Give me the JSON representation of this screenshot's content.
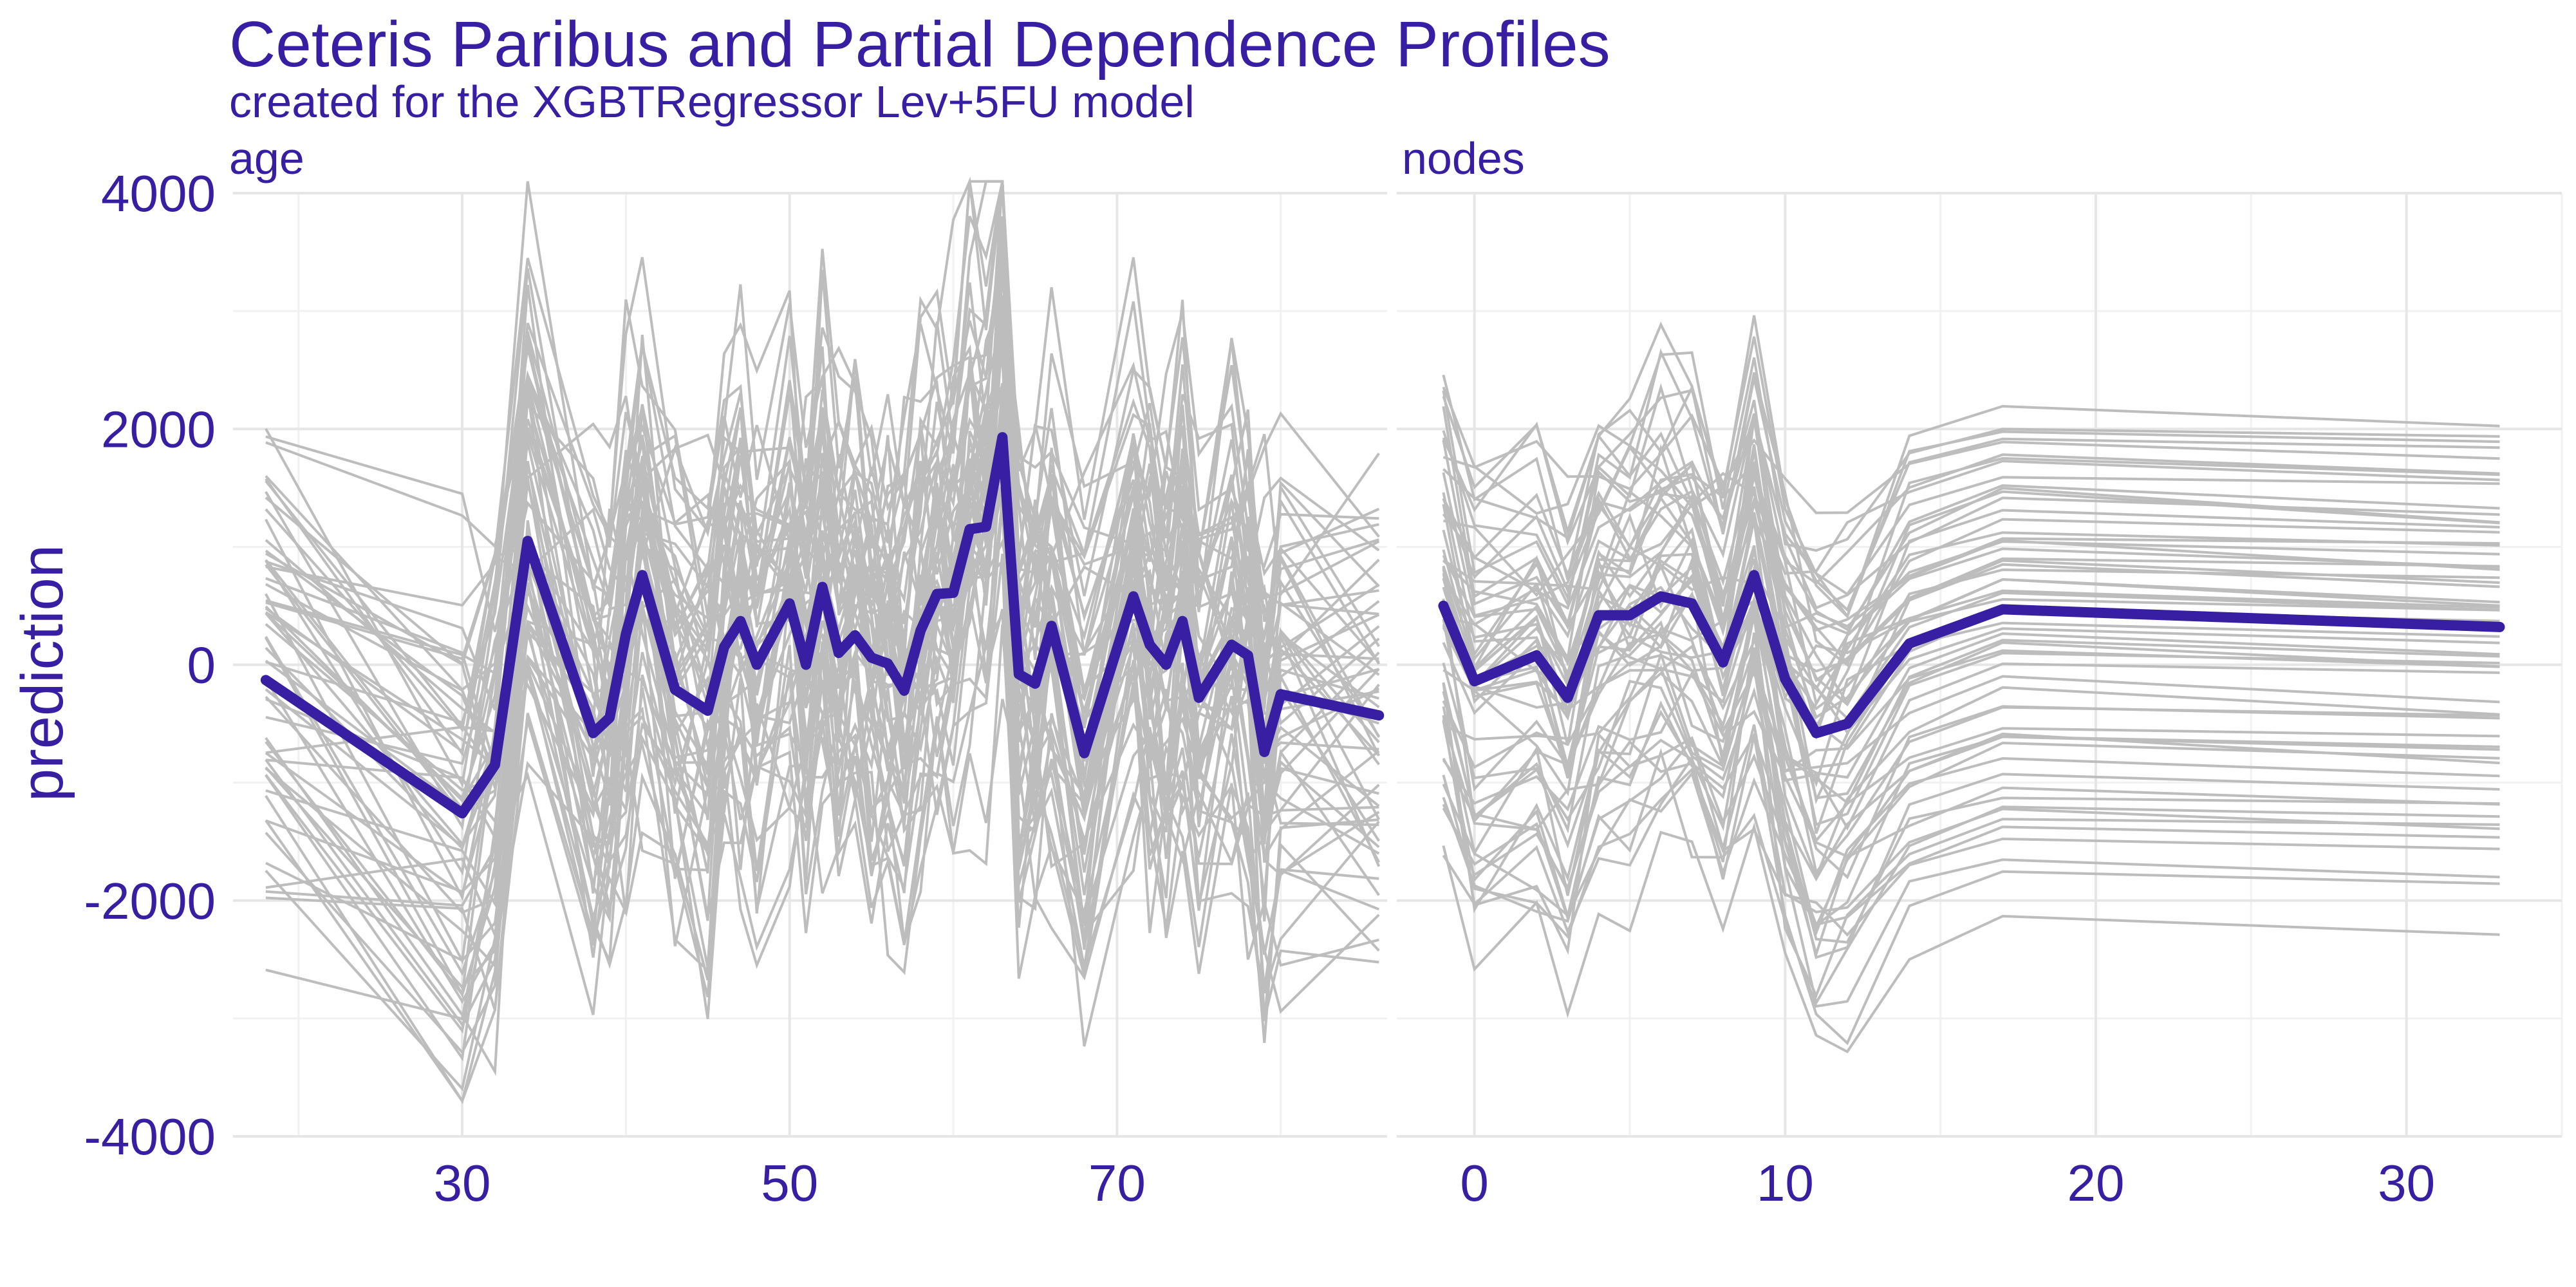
{
  "title": "Ceteris Paribus and Partial Dependence Profiles",
  "subtitle": "created for the XGBTRegressor Lev+5FU model",
  "ylabel": "prediction",
  "colors": {
    "text": "#371EA3",
    "pdp": "#371EA3",
    "cp": "#BDBDBD",
    "grid": "#E6E6E6",
    "minor_grid": "#F1F1F1"
  },
  "chart_data": [
    {
      "type": "line",
      "panel": "age",
      "xticks": [
        30,
        50,
        70
      ],
      "yticks": [
        4000,
        2000,
        0,
        -2000,
        -4000
      ],
      "xlim": [
        16,
        86.5
      ],
      "ylim": [
        -4000,
        4000
      ],
      "pdp": {
        "x": [
          18,
          30,
          32,
          34,
          38,
          39,
          40,
          41,
          43,
          45,
          46,
          47,
          48,
          50,
          51,
          52,
          53,
          54,
          55,
          56,
          57,
          58,
          59,
          60,
          61,
          62,
          63,
          64,
          65,
          66,
          68,
          71,
          72,
          73,
          74,
          75,
          77,
          78,
          79,
          80,
          86
        ],
        "y": [
          -130,
          -1260,
          -850,
          1050,
          -580,
          -450,
          260,
          760,
          -210,
          -390,
          150,
          370,
          0,
          520,
          0,
          660,
          100,
          250,
          60,
          10,
          -220,
          290,
          600,
          610,
          1150,
          1170,
          1930,
          -80,
          -160,
          330,
          -750,
          580,
          170,
          0,
          370,
          -280,
          170,
          80,
          -740,
          -250,
          -430
        ]
      },
      "cp_count": 60,
      "grid": true
    },
    {
      "type": "line",
      "panel": "nodes",
      "xticks": [
        0,
        10,
        20,
        30
      ],
      "yticks": [
        4000,
        2000,
        0,
        -2000,
        -4000
      ],
      "xlim": [
        -2.5,
        35
      ],
      "ylim": [
        -4000,
        4000
      ],
      "pdp": {
        "x": [
          -1,
          0,
          2,
          3,
          4,
          5,
          6,
          7,
          8,
          9,
          10,
          11,
          12,
          14,
          17,
          33
        ],
        "y": [
          500,
          -140,
          80,
          -280,
          420,
          420,
          580,
          520,
          20,
          760,
          -120,
          -580,
          -500,
          180,
          470,
          320
        ]
      },
      "cp_count": 60,
      "grid": true
    }
  ]
}
